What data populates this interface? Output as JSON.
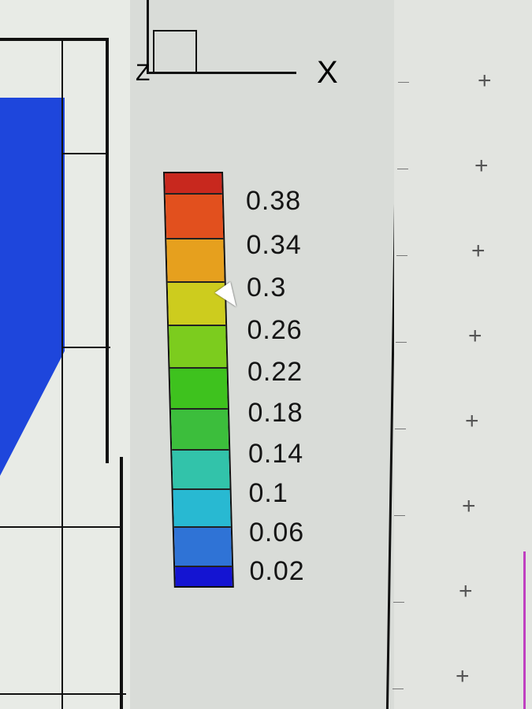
{
  "axis_triad": {
    "z_label": "Z",
    "x_label": "X"
  },
  "legend": {
    "labels": [
      "0.38",
      "0.34",
      "0.3",
      "0.26",
      "0.22",
      "0.18",
      "0.14",
      "0.1",
      "0.06",
      "0.02"
    ],
    "band_colors": [
      "#c8281e",
      "#e2501e",
      "#e6a01e",
      "#cdcc1e",
      "#7ccc1e",
      "#3ec21e",
      "#3cbe3c",
      "#32c3aa",
      "#28b9d2",
      "#2f73d6",
      "#1414d2"
    ]
  },
  "plot_colors": {
    "mesh_fill": "#1a3cdc",
    "mesh_fill_dark": "#0a14e6"
  },
  "grid_marks": {
    "symbol": "+",
    "count": 8
  }
}
